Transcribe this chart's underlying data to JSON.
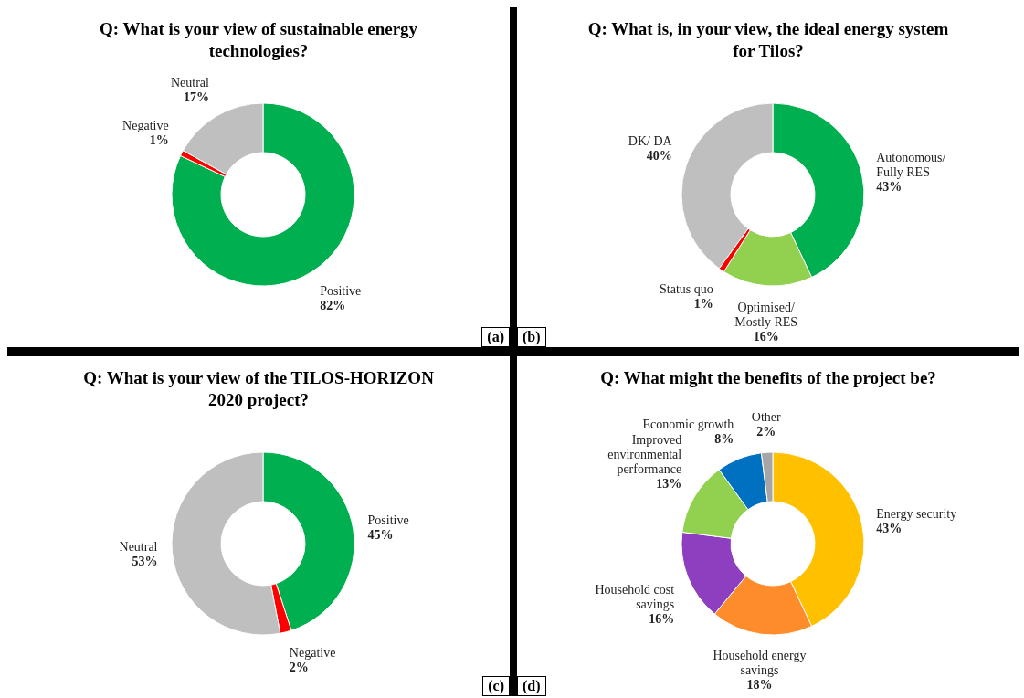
{
  "chart_data": [
    {
      "type": "donut",
      "title": "Q: What is your view of sustainable energy technologies?",
      "categories": [
        "Positive",
        "Negative",
        "Neutral"
      ],
      "values": [
        82,
        1,
        17
      ],
      "colors": [
        "#00b050",
        "#ff0000",
        "#bfbfbf"
      ],
      "value_labels": [
        "82%",
        "1%",
        "17%"
      ],
      "legend": false,
      "annotations": [
        "(a)"
      ]
    },
    {
      "type": "donut",
      "title": "Q: What is, in your view, the ideal energy system for Tilos?",
      "categories": [
        "Autonomous/ Fully RES",
        "Optimised/ Mostly RES",
        "Status quo",
        "DK/ DA"
      ],
      "values": [
        43,
        16,
        1,
        40
      ],
      "colors": [
        "#00b050",
        "#92d050",
        "#ff0000",
        "#bfbfbf"
      ],
      "value_labels": [
        "43%",
        "16%",
        "1%",
        "40%"
      ],
      "legend": false,
      "annotations": [
        "(b)"
      ]
    },
    {
      "type": "donut",
      "title": "Q: What is your view of the TILOS-HORIZON 2020 project?",
      "categories": [
        "Positive",
        "Negative",
        "Neutral"
      ],
      "values": [
        45,
        2,
        53
      ],
      "colors": [
        "#00b050",
        "#ff0000",
        "#bfbfbf"
      ],
      "value_labels": [
        "45%",
        "2%",
        "53%"
      ],
      "legend": false,
      "annotations": [
        "(c)"
      ]
    },
    {
      "type": "donut",
      "title": "Q: What might the benefits of the project be?",
      "categories": [
        "Energy security",
        "Household energy savings",
        "Household cost savings",
        "Improved environmental performance",
        "Economic growth",
        "Other"
      ],
      "values": [
        43,
        18,
        16,
        13,
        8,
        2
      ],
      "colors": [
        "#ffc000",
        "#ff8c2a",
        "#8e3fbf",
        "#92d050",
        "#0070c0",
        "#a6a6a6"
      ],
      "value_labels": [
        "43%",
        "18%",
        "16%",
        "13%",
        "8%",
        "2%"
      ],
      "legend": false,
      "annotations": [
        "(d)"
      ]
    }
  ]
}
